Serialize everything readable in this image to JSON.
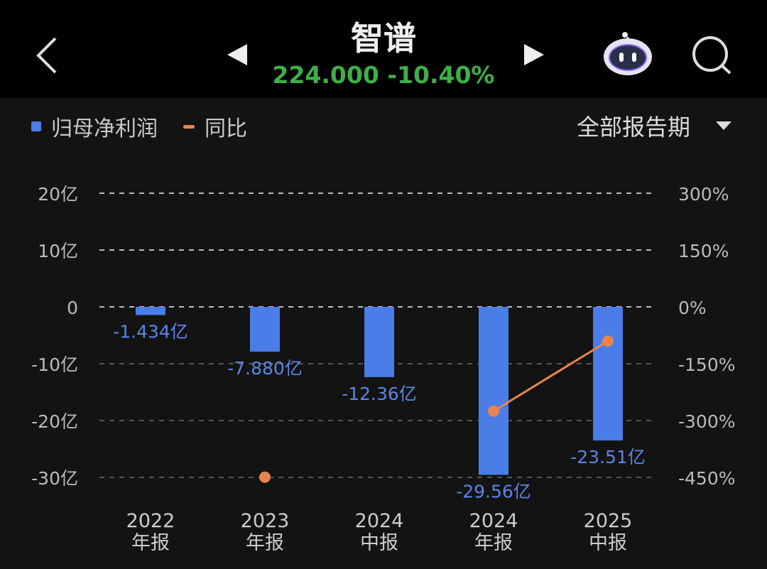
{
  "header": {
    "title": "智谱",
    "price": "224.000",
    "change": "-10.40%"
  },
  "legend": {
    "series1": "归母净利润",
    "series2": "同比"
  },
  "period_select": "全部报告期",
  "colors": {
    "bar": "#4a7de8",
    "line": "#e9834f",
    "up": "#3fae49"
  },
  "chart_data": {
    "type": "bar",
    "categories": [
      [
        "2022",
        "年报"
      ],
      [
        "2023",
        "年报"
      ],
      [
        "2024",
        "中报"
      ],
      [
        "2024",
        "年报"
      ],
      [
        "2025",
        "中报"
      ]
    ],
    "series": [
      {
        "name": "归母净利润",
        "unit": "亿",
        "values": [
          -1.434,
          -7.88,
          -12.36,
          -29.56,
          -23.51
        ],
        "labels": [
          "-1.434亿",
          "-7.880亿",
          "-12.36亿",
          "-29.56亿",
          "-23.51亿"
        ]
      },
      {
        "name": "同比",
        "type": "line",
        "unit": "%",
        "values": [
          null,
          -449.5,
          null,
          -275.1,
          -90.2
        ]
      }
    ],
    "left_axis": {
      "ticks": [
        20,
        10,
        0,
        -10,
        -20,
        -30
      ],
      "labels": [
        "20亿",
        "10亿",
        "0",
        "-10亿",
        "-20亿",
        "-30亿"
      ],
      "ylim": [
        -30,
        20
      ]
    },
    "right_axis": {
      "ticks": [
        300,
        150,
        0,
        -150,
        -300,
        -450
      ],
      "labels": [
        "300%",
        "150%",
        "0%",
        "-150%",
        "-300%",
        "-450%"
      ],
      "ylim": [
        -450,
        300
      ]
    },
    "grid": true
  }
}
